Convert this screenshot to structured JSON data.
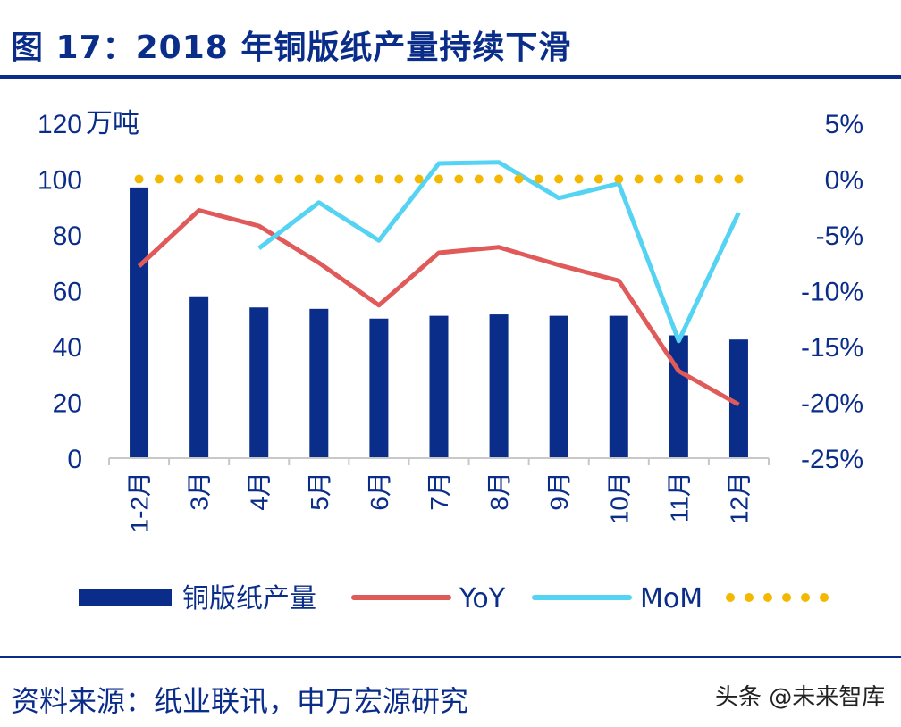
{
  "header": {
    "title": "图 17：2018 年铜版纸产量持续下滑"
  },
  "footer": {
    "source": "资料来源：纸业联讯，申万宏源研究",
    "watermark": "头条 @未来智库"
  },
  "chart_data": {
    "type": "bar",
    "categories": [
      "1-2月",
      "3月",
      "4月",
      "5月",
      "6月",
      "7月",
      "8月",
      "9月",
      "10月",
      "11月",
      "12月"
    ],
    "y_left": {
      "unit": "万吨",
      "ticks": [
        "0",
        "20",
        "40",
        "60",
        "80",
        "100",
        "120"
      ],
      "ylim": [
        0,
        120
      ]
    },
    "y_right": {
      "ticks": [
        "-25%",
        "-20%",
        "-15%",
        "-10%",
        "-5%",
        "0%",
        "5%"
      ],
      "ylim": [
        -25,
        5
      ]
    },
    "series": [
      {
        "name": "铜版纸产量",
        "type": "bar",
        "axis": "left",
        "color": "#0a2d8a",
        "values": [
          97,
          58,
          54,
          53.5,
          50,
          51,
          51.5,
          51,
          51,
          44,
          42.5
        ]
      },
      {
        "name": "YoY",
        "type": "line",
        "axis": "right",
        "color": "#e05a5a",
        "values": [
          -7.8,
          -2.8,
          -4.2,
          -7.5,
          -11.3,
          -6.6,
          -6.1,
          -7.7,
          -9.1,
          -17.2,
          -20.2
        ]
      },
      {
        "name": "MoM",
        "type": "line",
        "axis": "right",
        "color": "#55d3f2",
        "values": [
          null,
          null,
          -6.2,
          -2.1,
          -5.5,
          1.4,
          1.5,
          -1.7,
          -0.4,
          -14.5,
          -3.0
        ]
      },
      {
        "name": "",
        "type": "line",
        "axis": "right",
        "color": "#f5b800",
        "style": "dotted",
        "values": [
          0,
          0,
          0,
          0,
          0,
          0,
          0,
          0,
          0,
          0,
          0
        ]
      }
    ],
    "legend": {
      "placement": "bottom"
    },
    "grid": false
  }
}
